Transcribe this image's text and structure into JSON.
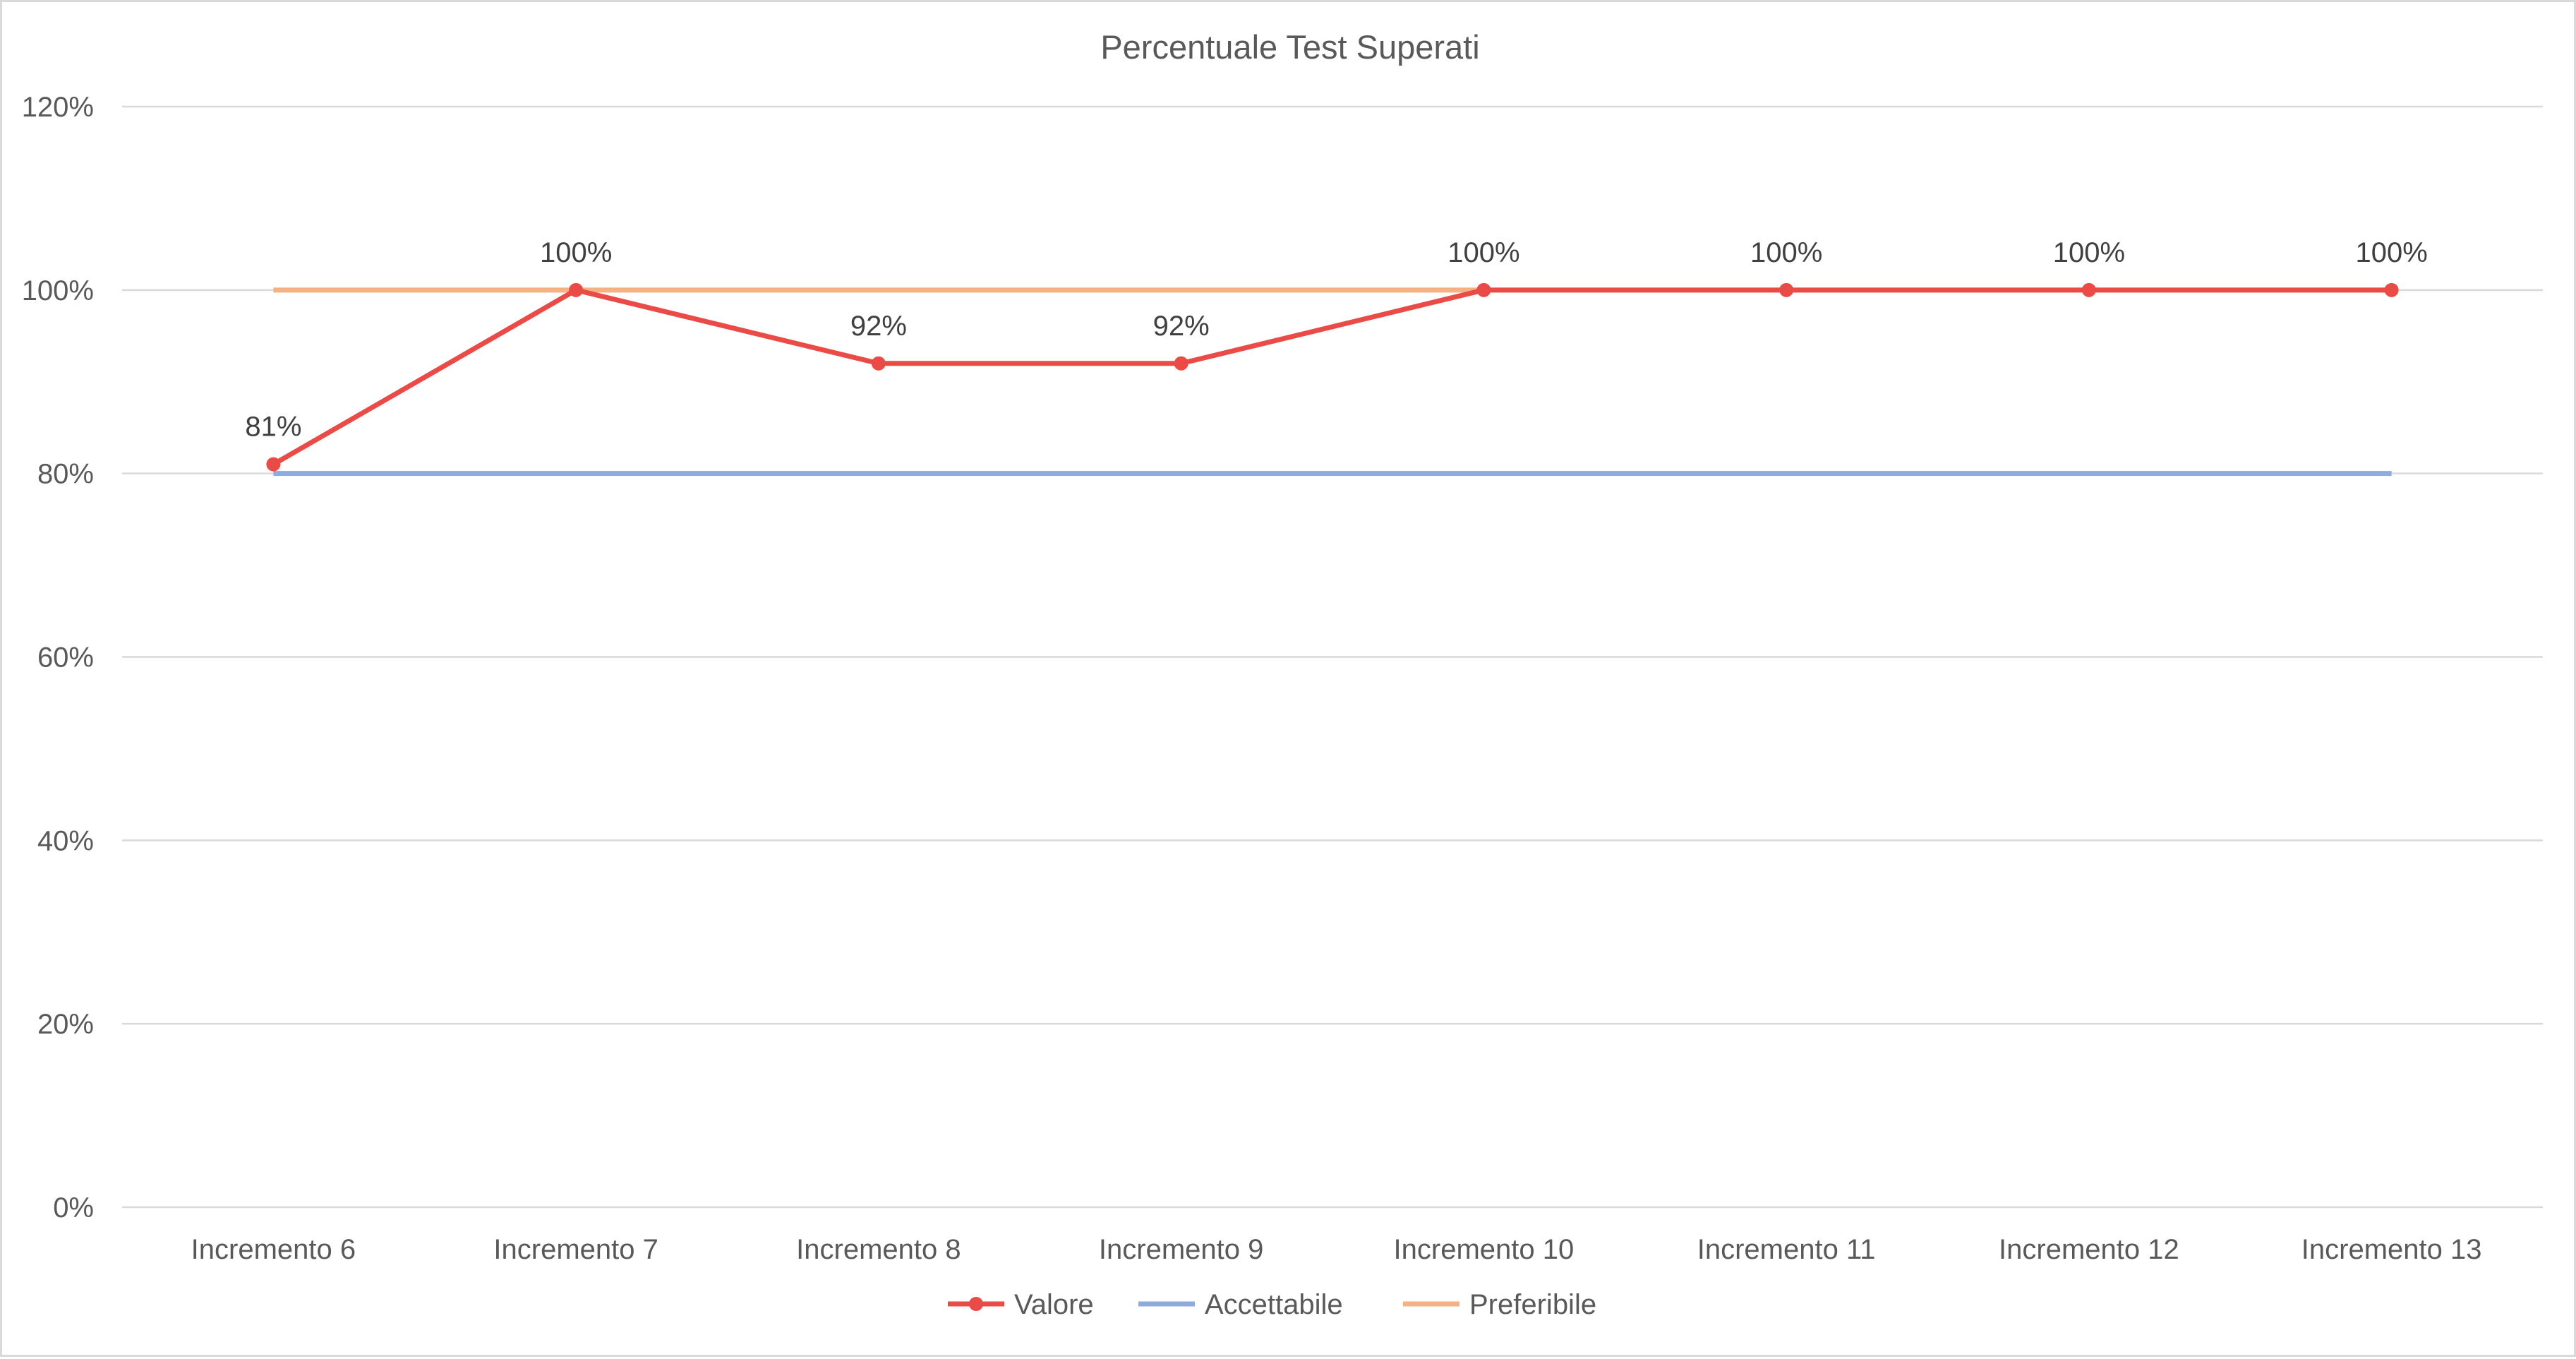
{
  "chart_data": {
    "type": "line",
    "title": "Percentuale Test Superati",
    "xlabel": "",
    "ylabel": "",
    "categories": [
      "Incremento 6",
      "Incremento 7",
      "Incremento 8",
      "Incremento 9",
      "Incremento 10",
      "Incremento 11",
      "Incremento 12",
      "Incremento 13"
    ],
    "y_ticks": [
      "0%",
      "20%",
      "40%",
      "60%",
      "80%",
      "100%",
      "120%"
    ],
    "ylim": [
      0,
      1.2
    ],
    "grid": true,
    "legend_position": "bottom",
    "series": [
      {
        "name": "Valore",
        "color": "#ea4b47",
        "markers": true,
        "values": [
          0.81,
          1.0,
          0.92,
          0.92,
          1.0,
          1.0,
          1.0,
          1.0
        ],
        "data_labels": [
          "81%",
          "100%",
          "92%",
          "92%",
          "100%",
          "100%",
          "100%",
          "100%"
        ]
      },
      {
        "name": "Accettabile",
        "color": "#8faadc",
        "markers": false,
        "values": [
          0.8,
          0.8,
          0.8,
          0.8,
          0.8,
          0.8,
          0.8,
          0.8
        ]
      },
      {
        "name": "Preferibile",
        "color": "#f4b183",
        "markers": false,
        "values": [
          1.0,
          1.0,
          1.0,
          1.0,
          1.0,
          1.0,
          1.0,
          1.0
        ]
      }
    ]
  }
}
